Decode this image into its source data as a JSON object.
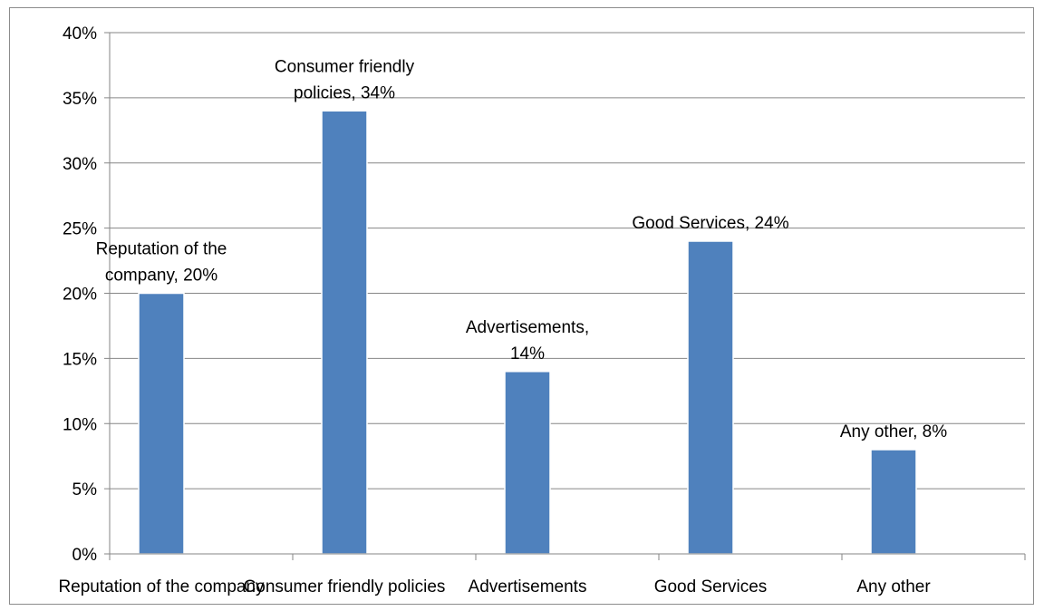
{
  "chart_data": {
    "type": "bar",
    "categories": [
      "Reputation of the company",
      "Consumer friendly policies",
      "Advertisements",
      "Good Services",
      "Any other"
    ],
    "values": [
      20,
      34,
      14,
      24,
      8
    ],
    "data_labels": [
      [
        "Reputation of the",
        "company, 20%"
      ],
      [
        "Consumer friendly",
        "policies, 34%"
      ],
      [
        "Advertisements,",
        "14%"
      ],
      [
        "Good Services, 24%"
      ],
      [
        "Any other, 8%"
      ]
    ],
    "y_ticks": [
      "0%",
      "5%",
      "10%",
      "15%",
      "20%",
      "25%",
      "30%",
      "35%",
      "40%"
    ],
    "ylim": [
      0,
      40
    ],
    "grid": true,
    "bar_color": "#4f81bd",
    "gridline_color": "#868686",
    "title": "",
    "xlabel": "",
    "ylabel": ""
  }
}
